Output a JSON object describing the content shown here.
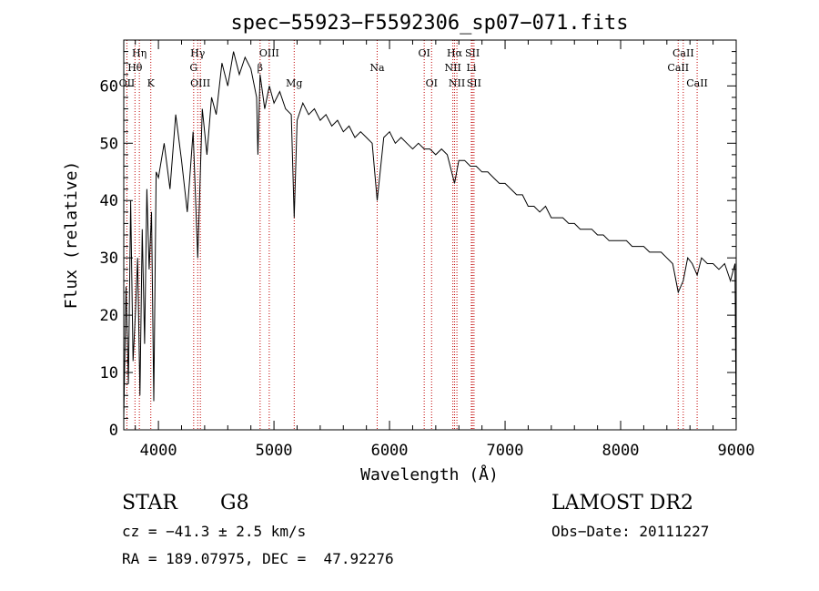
{
  "chart_data": {
    "type": "line",
    "title": "spec−55923−F5592306_sp07−071.fits",
    "xlabel": "Wavelength (Å)",
    "ylabel": "Flux (relative)",
    "xlim": [
      3700,
      9000
    ],
    "ylim": [
      0,
      68
    ],
    "x_ticks": [
      4000,
      5000,
      6000,
      7000,
      8000,
      9000
    ],
    "y_ticks": [
      0,
      10,
      20,
      30,
      40,
      50,
      60
    ],
    "grid": false,
    "series": [
      {
        "x": [
          3700,
          3720,
          3740,
          3760,
          3780,
          3800,
          3820,
          3840,
          3860,
          3880,
          3900,
          3920,
          3940,
          3960,
          3980,
          4000,
          4050,
          4100,
          4150,
          4200,
          4250,
          4300,
          4340,
          4380,
          4420,
          4460,
          4500,
          4550,
          4600,
          4650,
          4700,
          4750,
          4800,
          4850,
          4861,
          4880,
          4920,
          4960,
          5000,
          5050,
          5100,
          5150,
          5175,
          5200,
          5250,
          5300,
          5350,
          5400,
          5450,
          5500,
          5550,
          5600,
          5650,
          5700,
          5750,
          5800,
          5850,
          5893,
          5950,
          6000,
          6050,
          6100,
          6150,
          6200,
          6250,
          6300,
          6350,
          6400,
          6450,
          6500,
          6563,
          6600,
          6650,
          6700,
          6750,
          6800,
          6850,
          6900,
          6950,
          7000,
          7050,
          7100,
          7150,
          7200,
          7250,
          7300,
          7350,
          7400,
          7450,
          7500,
          7550,
          7600,
          7650,
          7700,
          7750,
          7800,
          7850,
          7900,
          7950,
          8000,
          8050,
          8100,
          8150,
          8200,
          8250,
          8300,
          8350,
          8400,
          8450,
          8498,
          8542,
          8580,
          8620,
          8662,
          8700,
          8750,
          8800,
          8850,
          8900,
          8950,
          8990,
          9000
        ],
        "y": [
          2,
          25,
          8,
          40,
          12,
          20,
          30,
          6,
          35,
          15,
          42,
          28,
          38,
          5,
          45,
          44,
          50,
          42,
          55,
          47,
          38,
          52,
          30,
          56,
          48,
          58,
          55,
          64,
          60,
          66,
          62,
          65,
          63,
          58,
          48,
          62,
          56,
          60,
          57,
          59,
          56,
          55,
          37,
          54,
          57,
          55,
          56,
          54,
          55,
          53,
          54,
          52,
          53,
          51,
          52,
          51,
          50,
          40,
          51,
          52,
          50,
          51,
          50,
          49,
          50,
          49,
          49,
          48,
          49,
          48,
          43,
          47,
          47,
          46,
          46,
          45,
          45,
          44,
          43,
          43,
          42,
          41,
          41,
          39,
          39,
          38,
          39,
          37,
          37,
          37,
          36,
          36,
          35,
          35,
          35,
          34,
          34,
          33,
          33,
          33,
          33,
          32,
          32,
          32,
          31,
          31,
          31,
          30,
          29,
          24,
          26,
          30,
          29,
          27,
          30,
          29,
          29,
          28,
          29,
          26,
          29,
          0
        ]
      }
    ],
    "lines": [
      {
        "label": "Hη",
        "x": 3835,
        "row": 0
      },
      {
        "label": "Hθ",
        "x": 3797,
        "row": 1
      },
      {
        "label": "OII",
        "x": 3727,
        "row": 2
      },
      {
        "label": "K",
        "x": 3934,
        "row": 2
      },
      {
        "label": "Hγ",
        "x": 4340,
        "row": 0
      },
      {
        "label": "G",
        "x": 4305,
        "row": 1
      },
      {
        "label": "OIII",
        "x": 4363,
        "row": 2
      },
      {
        "label": "OIII",
        "x": 4959,
        "row": 0
      },
      {
        "label": "β",
        "x": 4880,
        "row": 1
      },
      {
        "label": "Mg",
        "x": 5175,
        "row": 2
      },
      {
        "label": "Na",
        "x": 5893,
        "row": 1
      },
      {
        "label": "OI",
        "x": 6300,
        "row": 0
      },
      {
        "label": "OI",
        "x": 6364,
        "row": 2
      },
      {
        "label": "Hα",
        "x": 6563,
        "row": 0
      },
      {
        "label": "NII",
        "x": 6548,
        "row": 1
      },
      {
        "label": "NII",
        "x": 6583,
        "row": 2
      },
      {
        "label": "SII",
        "x": 6717,
        "row": 0
      },
      {
        "label": "Li",
        "x": 6708,
        "row": 1
      },
      {
        "label": "SII",
        "x": 6731,
        "row": 2
      },
      {
        "label": "CaII",
        "x": 8542,
        "row": 0
      },
      {
        "label": "CaII",
        "x": 8498,
        "row": 1
      },
      {
        "label": "CaII",
        "x": 8662,
        "row": 2
      }
    ]
  },
  "info": {
    "class_label": "STAR",
    "subclass": "G8",
    "survey": "LAMOST DR2",
    "cz": "cz = −41.3 ± 2.5 km/s",
    "obs_date": "Obs−Date: 20111227",
    "coords": "RA = 189.07975, DEC =  47.92276"
  }
}
